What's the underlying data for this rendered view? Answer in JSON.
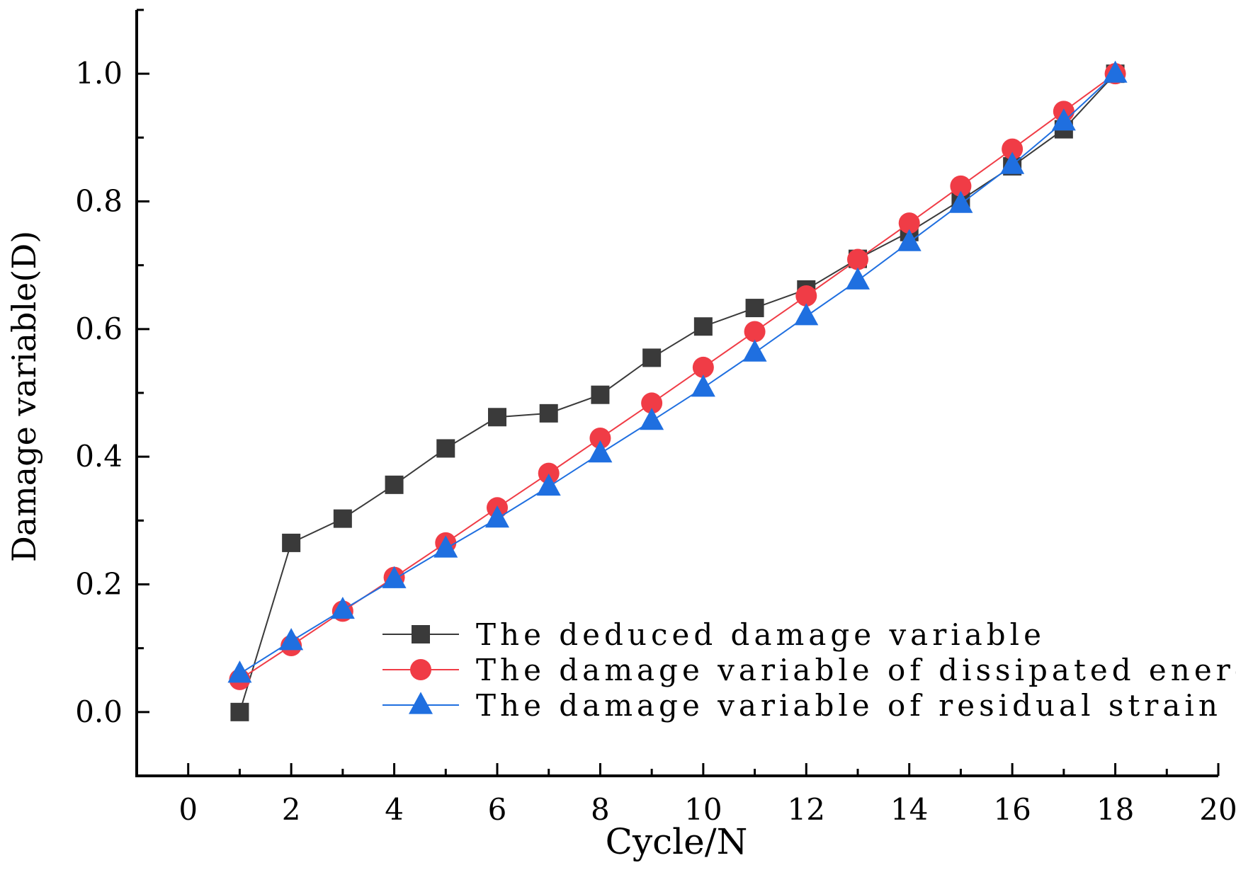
{
  "chart_data": {
    "type": "line",
    "title": "",
    "xlabel": "Cycle/N",
    "ylabel": "Damage variable(D)",
    "xlim": [
      -1,
      20
    ],
    "ylim": [
      -0.1,
      1.1
    ],
    "x_ticks": [
      0,
      2,
      4,
      6,
      8,
      10,
      12,
      14,
      16,
      18,
      20
    ],
    "x_tick_labels": [
      "0",
      "2",
      "4",
      "6",
      "8",
      "10",
      "12",
      "14",
      "16",
      "18",
      "20"
    ],
    "y_ticks": [
      0.0,
      0.2,
      0.4,
      0.6,
      0.8,
      1.0
    ],
    "y_tick_labels": [
      "0.0",
      "0.2",
      "0.4",
      "0.6",
      "0.8",
      "1.0"
    ],
    "grid": false,
    "legend_position": "bottom-right",
    "series": [
      {
        "name": "The deduced damage variable",
        "marker": "square",
        "color": "#3a3a3a",
        "x": [
          1,
          2,
          3,
          4,
          5,
          6,
          7,
          8,
          9,
          10,
          11,
          12,
          13,
          14,
          15,
          16,
          17,
          18
        ],
        "values": [
          0.0,
          0.265,
          0.303,
          0.356,
          0.413,
          0.462,
          0.468,
          0.497,
          0.555,
          0.604,
          0.633,
          0.662,
          0.71,
          0.752,
          0.802,
          0.855,
          0.913,
          1.0
        ]
      },
      {
        "name": "The damage variable of dissipated energy",
        "marker": "circle",
        "color": "#f03c46",
        "x": [
          1,
          2,
          3,
          4,
          5,
          6,
          7,
          8,
          9,
          10,
          11,
          12,
          13,
          14,
          15,
          16,
          17,
          18
        ],
        "values": [
          0.051,
          0.104,
          0.158,
          0.211,
          0.265,
          0.32,
          0.374,
          0.429,
          0.484,
          0.54,
          0.596,
          0.652,
          0.709,
          0.766,
          0.824,
          0.882,
          0.941,
          1.0
        ]
      },
      {
        "name": "The damage variable of residual strain",
        "marker": "triangle",
        "color": "#1f6fe0",
        "x": [
          1,
          2,
          3,
          4,
          5,
          6,
          7,
          8,
          9,
          10,
          11,
          12,
          13,
          14,
          15,
          16,
          17,
          18
        ],
        "values": [
          0.06,
          0.111,
          0.16,
          0.208,
          0.256,
          0.303,
          0.353,
          0.405,
          0.456,
          0.508,
          0.563,
          0.62,
          0.676,
          0.736,
          0.796,
          0.857,
          0.925,
          1.0
        ]
      }
    ]
  }
}
